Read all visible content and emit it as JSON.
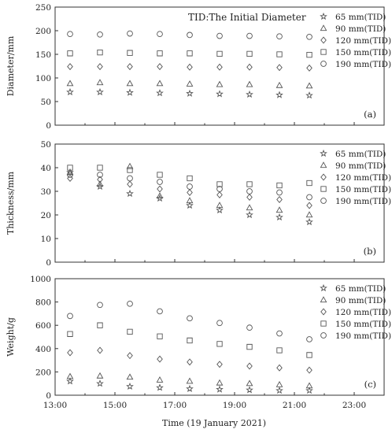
{
  "figure": {
    "xlabel": "Time (19 January 2021)",
    "xticks": [
      "13:00",
      "15:00",
      "17:00",
      "19:00",
      "21:00",
      "23:00"
    ],
    "xlim": [
      13,
      24
    ]
  },
  "chart_data": [
    {
      "type": "scatter",
      "panel_label": "(a)",
      "annotation": "TID:The Initial Diameter",
      "ylabel": "Diameter/mm",
      "ylim": [
        0,
        250
      ],
      "yticks": [
        "0",
        "50",
        "100",
        "150",
        "200",
        "250"
      ],
      "legend_position": "top-right",
      "x": [
        13.5,
        14.5,
        15.5,
        16.5,
        17.5,
        18.5,
        19.5,
        20.5,
        21.5
      ],
      "series": [
        {
          "name": "65 mm(TID)",
          "marker": "star",
          "values": [
            70,
            70,
            69,
            68,
            67,
            66,
            65,
            64,
            63
          ]
        },
        {
          "name": "90 mm(TID)",
          "marker": "triangle",
          "values": [
            88,
            90,
            88,
            88,
            87,
            86,
            86,
            84,
            83
          ]
        },
        {
          "name": "120 mm(TID)",
          "marker": "diamond",
          "values": [
            124,
            124,
            124,
            124,
            123,
            123,
            123,
            122,
            121
          ]
        },
        {
          "name": "150 mm(TID)",
          "marker": "square",
          "values": [
            152,
            154,
            153,
            152,
            152,
            151,
            151,
            150,
            149
          ]
        },
        {
          "name": "190 mm(TID)",
          "marker": "circle",
          "values": [
            193,
            192,
            194,
            193,
            191,
            189,
            189,
            188,
            187
          ]
        }
      ]
    },
    {
      "type": "scatter",
      "panel_label": "(b)",
      "ylabel": "Thickness/mm",
      "ylim": [
        0,
        50
      ],
      "yticks": [
        "0",
        "10",
        "20",
        "30",
        "40",
        "50"
      ],
      "legend_position": "top-right",
      "x": [
        13.5,
        14.5,
        15.5,
        16.5,
        17.5,
        18.5,
        19.5,
        20.5,
        21.5
      ],
      "series": [
        {
          "name": "65 mm(TID)",
          "marker": "star",
          "values": [
            38,
            32,
            29,
            27,
            24,
            22,
            20,
            19,
            17
          ]
        },
        {
          "name": "90 mm(TID)",
          "marker": "triangle",
          "values": [
            38,
            33,
            40.5,
            28,
            26,
            24,
            23,
            22,
            20
          ]
        },
        {
          "name": "120 mm(TID)",
          "marker": "diamond",
          "values": [
            35.5,
            35,
            33,
            31,
            29.5,
            28.5,
            27.5,
            26.5,
            24
          ]
        },
        {
          "name": "150 mm(TID)",
          "marker": "square",
          "values": [
            40,
            40,
            39,
            37,
            35.5,
            33,
            33,
            32.5,
            33.5
          ]
        },
        {
          "name": "190 mm(TID)",
          "marker": "circle",
          "values": [
            37,
            37,
            35.5,
            34,
            32,
            31,
            30,
            29.5,
            27.5
          ]
        }
      ]
    },
    {
      "type": "scatter",
      "panel_label": "(c)",
      "ylabel": "Weight/g",
      "ylim": [
        0,
        1000
      ],
      "yticks": [
        "0",
        "200",
        "400",
        "600",
        "800",
        "1000"
      ],
      "legend_position": "top-right",
      "x": [
        13.5,
        14.5,
        15.5,
        16.5,
        17.5,
        18.5,
        19.5,
        20.5,
        21.5
      ],
      "series": [
        {
          "name": "65 mm(TID)",
          "marker": "star",
          "values": [
            120,
            100,
            75,
            65,
            55,
            50,
            45,
            40,
            40
          ]
        },
        {
          "name": "90 mm(TID)",
          "marker": "triangle",
          "values": [
            160,
            165,
            155,
            130,
            120,
            105,
            100,
            90,
            80
          ]
        },
        {
          "name": "120 mm(TID)",
          "marker": "diamond",
          "values": [
            365,
            385,
            340,
            310,
            285,
            265,
            250,
            235,
            215
          ]
        },
        {
          "name": "150 mm(TID)",
          "marker": "square",
          "values": [
            525,
            600,
            545,
            505,
            470,
            440,
            415,
            385,
            345
          ]
        },
        {
          "name": "190 mm(TID)",
          "marker": "circle",
          "values": [
            680,
            775,
            785,
            720,
            660,
            620,
            580,
            530,
            480
          ]
        }
      ]
    }
  ]
}
